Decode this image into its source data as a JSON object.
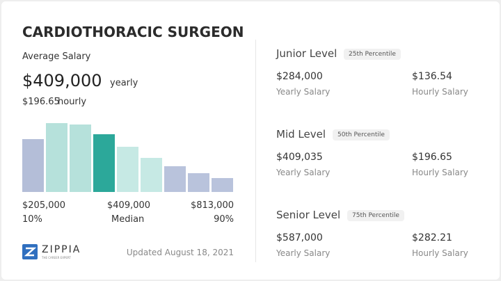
{
  "header": {
    "title": "CARDIOTHORACIC SURGEON"
  },
  "summary": {
    "label": "Average Salary",
    "yearly": "$409,000",
    "yearly_unit": "yearly",
    "hourly": "$196.65",
    "hourly_unit": "hourly"
  },
  "chart_data": {
    "type": "bar",
    "values": [
      76,
      99,
      97,
      83,
      65,
      49,
      37,
      27,
      20
    ],
    "colors": [
      "#b4bed8",
      "#b6e1db",
      "#b6e1db",
      "#2ca89a",
      "#c6e9e4",
      "#c6e9e4",
      "#b9c3dc",
      "#b9c3dc",
      "#b9c3dc"
    ],
    "ylim": [
      0,
      100
    ]
  },
  "range": {
    "low": "$205,000",
    "low_label": "10%",
    "mid": "$409,000",
    "mid_label": "Median",
    "high": "$813,000",
    "high_label": "90%"
  },
  "footer": {
    "brand": "ZIPPIA",
    "tagline": "THE CAREER EXPERT",
    "updated": "Updated August 18, 2021"
  },
  "levels": [
    {
      "name": "Junior Level",
      "percentile": "25th Percentile",
      "yearly": "$284,000",
      "yearly_label": "Yearly Salary",
      "hourly": "$136.54",
      "hourly_label": "Hourly Salary"
    },
    {
      "name": "Mid Level",
      "percentile": "50th Percentile",
      "yearly": "$409,035",
      "yearly_label": "Yearly Salary",
      "hourly": "$196.65",
      "hourly_label": "Hourly Salary"
    },
    {
      "name": "Senior Level",
      "percentile": "75th Percentile",
      "yearly": "$587,000",
      "yearly_label": "Yearly Salary",
      "hourly": "$282.21",
      "hourly_label": "Hourly Salary"
    }
  ]
}
